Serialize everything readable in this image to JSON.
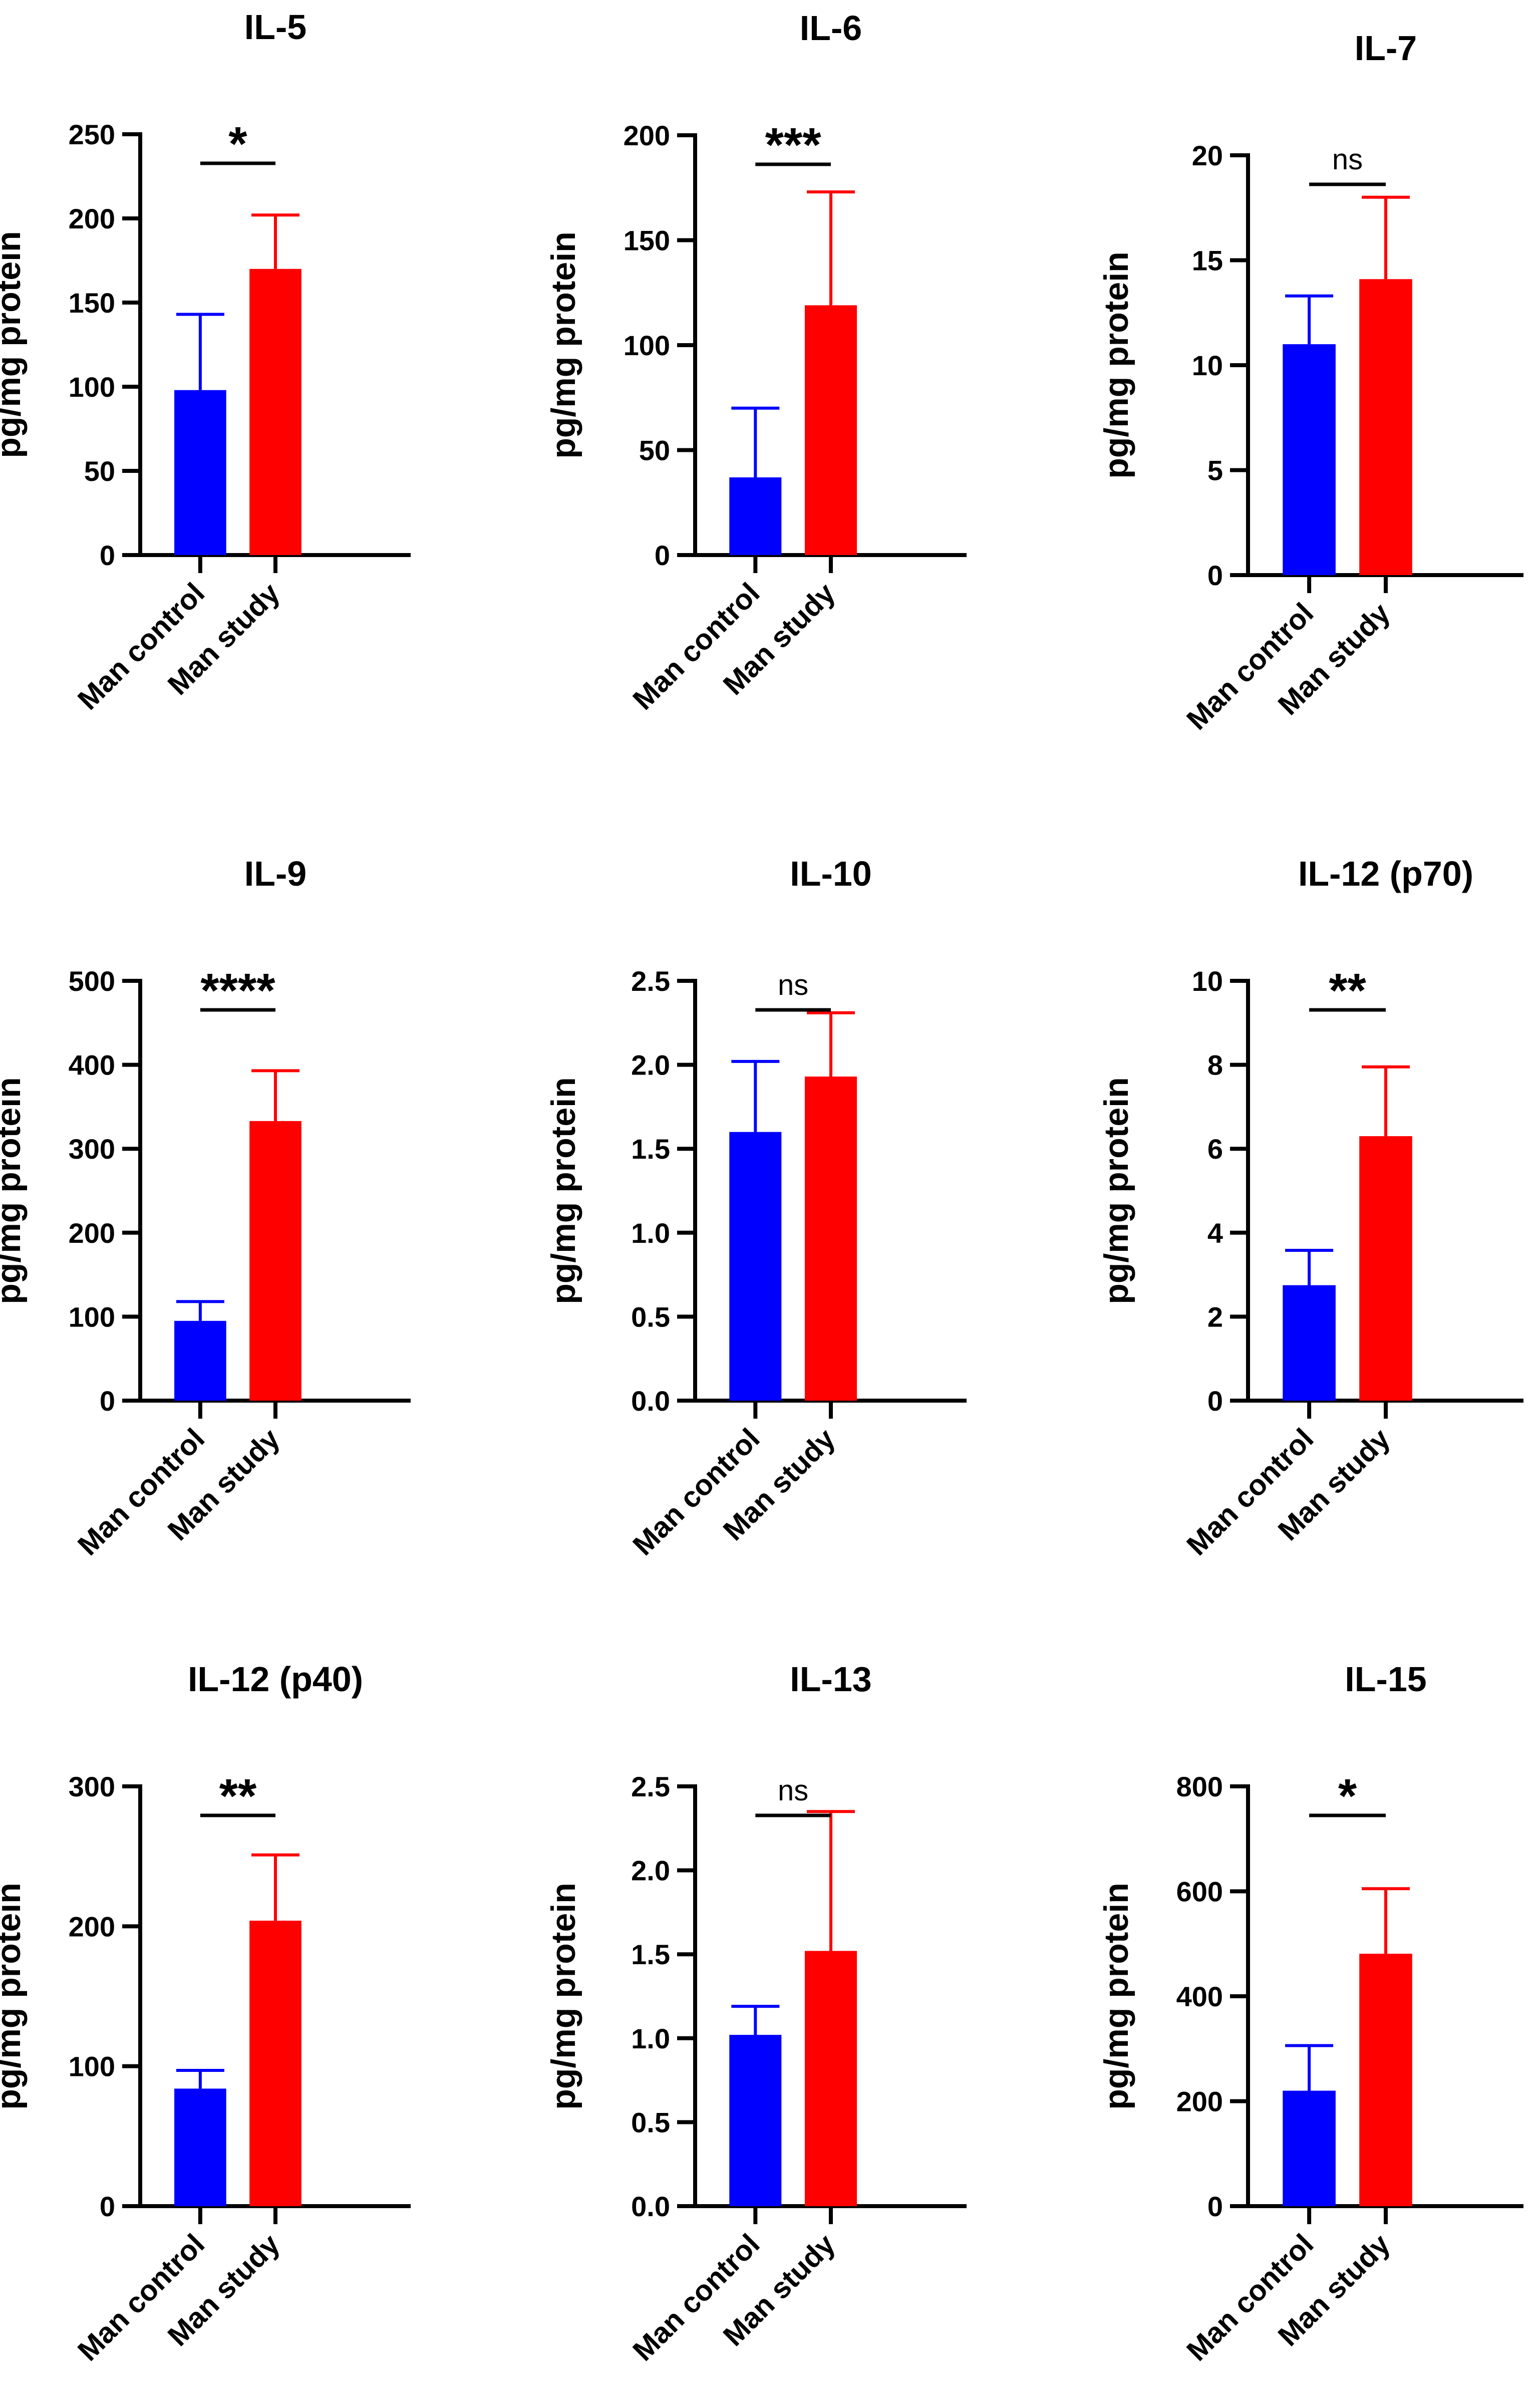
{
  "figure": {
    "colors": {
      "control": "#0000ff",
      "study": "#ff0000",
      "axis": "#000000"
    }
  },
  "chart_data": [
    {
      "type": "bar",
      "title": "IL-5",
      "ylabel": "pg/mg protein",
      "categories": [
        "Man control",
        "Man study"
      ],
      "values": [
        98,
        170
      ],
      "errors": [
        45,
        32
      ],
      "ylim": [
        0,
        250
      ],
      "yticks": [
        "0",
        "50",
        "100",
        "150",
        "200",
        "250"
      ],
      "significance": "*"
    },
    {
      "type": "bar",
      "title": "IL-6",
      "ylabel": "pg/mg protein",
      "categories": [
        "Man control",
        "Man study"
      ],
      "values": [
        37,
        119
      ],
      "errors": [
        33,
        54
      ],
      "ylim": [
        0,
        200
      ],
      "yticks": [
        "0",
        "50",
        "100",
        "150",
        "200"
      ],
      "significance": "***"
    },
    {
      "type": "bar",
      "title": "IL-7",
      "ylabel": "pg/mg protein",
      "categories": [
        "Man control",
        "Man study"
      ],
      "values": [
        11.0,
        14.1
      ],
      "errors": [
        2.3,
        3.9
      ],
      "ylim": [
        0,
        20
      ],
      "yticks": [
        "0",
        "5",
        "10",
        "15",
        "20"
      ],
      "significance": "ns"
    },
    {
      "type": "bar",
      "title": "IL-9",
      "ylabel": "pg/mg protein",
      "categories": [
        "Man control",
        "Man study"
      ],
      "values": [
        95,
        333
      ],
      "errors": [
        23,
        60
      ],
      "ylim": [
        0,
        500
      ],
      "yticks": [
        "0",
        "100",
        "200",
        "300",
        "400",
        "500"
      ],
      "significance": "****"
    },
    {
      "type": "bar",
      "title": "IL-10",
      "ylabel": "pg/mg protein",
      "categories": [
        "Man control",
        "Man study"
      ],
      "values": [
        1.6,
        1.93
      ],
      "errors": [
        0.42,
        0.38
      ],
      "ylim": [
        0,
        2.5
      ],
      "yticks": [
        "0.0",
        "0.5",
        "1.0",
        "1.5",
        "2.0",
        "2.5"
      ],
      "significance": "ns"
    },
    {
      "type": "bar",
      "title": "IL-12 (p70)",
      "ylabel": "pg/mg protein",
      "categories": [
        "Man control",
        "Man study"
      ],
      "values": [
        2.75,
        6.3
      ],
      "errors": [
        0.83,
        1.65
      ],
      "ylim": [
        0,
        10
      ],
      "yticks": [
        "0",
        "2",
        "4",
        "6",
        "8",
        "10"
      ],
      "significance": "**"
    },
    {
      "type": "bar",
      "title": "IL-12 (p40)",
      "ylabel": "pg/mg protein",
      "categories": [
        "Man control",
        "Man study"
      ],
      "values": [
        84,
        204
      ],
      "errors": [
        13,
        47
      ],
      "ylim": [
        0,
        300
      ],
      "yticks": [
        "0",
        "100",
        "200",
        "300"
      ],
      "significance": "**"
    },
    {
      "type": "bar",
      "title": "IL-13",
      "ylabel": "pg/mg protein",
      "categories": [
        "Man control",
        "Man study"
      ],
      "values": [
        1.02,
        1.52
      ],
      "errors": [
        0.17,
        0.83
      ],
      "ylim": [
        0,
        2.5
      ],
      "yticks": [
        "0.0",
        "0.5",
        "1.0",
        "1.5",
        "2.0",
        "2.5"
      ],
      "significance": "ns"
    },
    {
      "type": "bar",
      "title": "IL-15",
      "ylabel": "pg/mg protein",
      "categories": [
        "Man control",
        "Man study"
      ],
      "values": [
        220,
        481
      ],
      "errors": [
        86,
        124
      ],
      "ylim": [
        0,
        800
      ],
      "yticks": [
        "0",
        "200",
        "400",
        "600",
        "800"
      ],
      "significance": "*"
    }
  ]
}
